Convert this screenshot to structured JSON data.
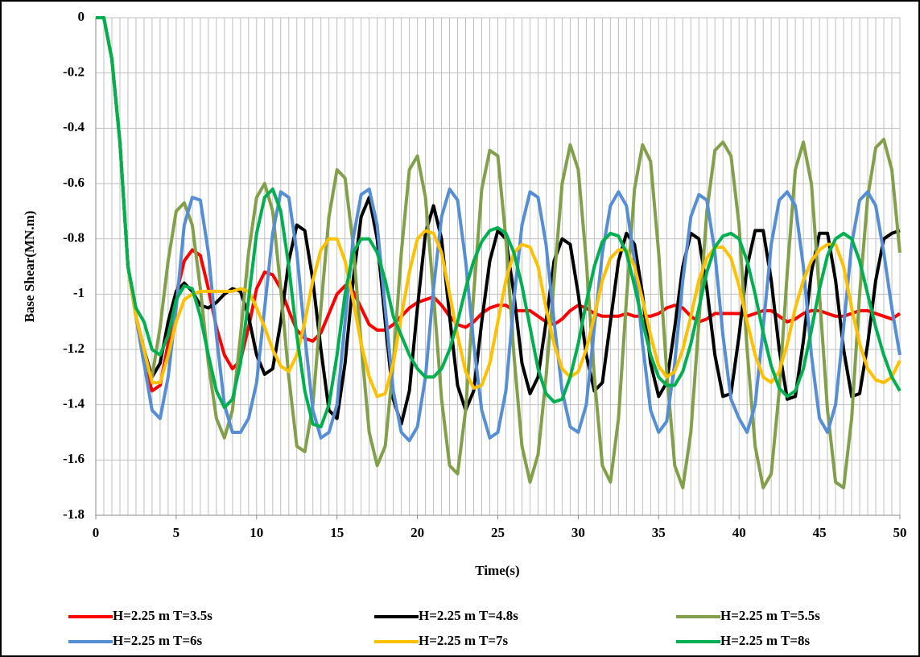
{
  "chart_data": {
    "type": "line",
    "x_label": "Time(s)",
    "y_label": "Base Shear(MN.m)",
    "x": [
      0,
      0.5,
      1,
      1.5,
      2,
      2.5,
      3,
      3.5,
      4,
      4.5,
      5,
      5.5,
      6,
      6.5,
      7,
      7.5,
      8,
      8.5,
      9,
      9.5,
      10,
      10.5,
      11,
      11.5,
      12,
      12.5,
      13,
      13.5,
      14,
      14.5,
      15,
      15.5,
      16,
      16.5,
      17,
      17.5,
      18,
      18.5,
      19,
      19.5,
      20,
      20.5,
      21,
      21.5,
      22,
      22.5,
      23,
      23.5,
      24,
      24.5,
      25,
      25.5,
      26,
      26.5,
      27,
      27.5,
      28,
      28.5,
      29,
      29.5,
      30,
      30.5,
      31,
      31.5,
      32,
      32.5,
      33,
      33.5,
      34,
      34.5,
      35,
      35.5,
      36,
      36.5,
      37,
      37.5,
      38,
      38.5,
      39,
      39.5,
      40,
      40.5,
      41,
      41.5,
      42,
      42.5,
      43,
      43.5,
      44,
      44.5,
      45,
      45.5,
      46,
      46.5,
      47,
      47.5,
      48,
      48.5,
      49,
      49.5,
      50
    ],
    "series": [
      {
        "name": "H=2.25 m T=3.5s",
        "color": "#ff0000",
        "values": [
          0,
          0,
          -0.15,
          -0.45,
          -0.9,
          -1.08,
          -1.25,
          -1.35,
          -1.33,
          -1.18,
          -1.0,
          -0.88,
          -0.84,
          -0.86,
          -0.98,
          -1.12,
          -1.22,
          -1.27,
          -1.24,
          -1.12,
          -0.98,
          -0.92,
          -0.93,
          -0.98,
          -1.06,
          -1.13,
          -1.16,
          -1.17,
          -1.14,
          -1.07,
          -1.0,
          -0.97,
          -0.99,
          -1.05,
          -1.11,
          -1.13,
          -1.13,
          -1.11,
          -1.08,
          -1.05,
          -1.03,
          -1.02,
          -1.01,
          -1.04,
          -1.08,
          -1.11,
          -1.12,
          -1.1,
          -1.07,
          -1.05,
          -1.04,
          -1.04,
          -1.06,
          -1.06,
          -1.06,
          -1.08,
          -1.1,
          -1.11,
          -1.09,
          -1.06,
          -1.04,
          -1.05,
          -1.07,
          -1.08,
          -1.08,
          -1.08,
          -1.07,
          -1.08,
          -1.08,
          -1.08,
          -1.07,
          -1.05,
          -1.04,
          -1.05,
          -1.08,
          -1.1,
          -1.09,
          -1.07,
          -1.07,
          -1.07,
          -1.07,
          -1.08,
          -1.07,
          -1.06,
          -1.06,
          -1.08,
          -1.1,
          -1.09,
          -1.07,
          -1.06,
          -1.06,
          -1.07,
          -1.08,
          -1.08,
          -1.07,
          -1.06,
          -1.06,
          -1.07,
          -1.08,
          -1.09,
          -1.07
        ]
      },
      {
        "name": "H=2.25 m T=4.8s",
        "color": "#000000",
        "values": [
          0,
          0,
          -0.15,
          -0.45,
          -0.9,
          -1.08,
          -1.2,
          -1.3,
          -1.25,
          -1.1,
          -0.99,
          -0.96,
          -0.99,
          -1.04,
          -1.05,
          -1.03,
          -1.0,
          -0.98,
          -0.99,
          -1.08,
          -1.22,
          -1.29,
          -1.27,
          -1.1,
          -0.88,
          -0.75,
          -0.77,
          -0.95,
          -1.2,
          -1.42,
          -1.45,
          -1.25,
          -0.95,
          -0.72,
          -0.65,
          -0.8,
          -1.1,
          -1.38,
          -1.47,
          -1.35,
          -1.05,
          -0.78,
          -0.68,
          -0.8,
          -1.08,
          -1.33,
          -1.42,
          -1.35,
          -1.1,
          -0.88,
          -0.77,
          -0.8,
          -1.0,
          -1.25,
          -1.36,
          -1.3,
          -1.1,
          -0.88,
          -0.8,
          -0.82,
          -1.0,
          -1.22,
          -1.35,
          -1.32,
          -1.1,
          -0.88,
          -0.78,
          -0.82,
          -1.0,
          -1.25,
          -1.37,
          -1.32,
          -1.12,
          -0.9,
          -0.78,
          -0.8,
          -0.98,
          -1.22,
          -1.37,
          -1.36,
          -1.15,
          -0.9,
          -0.77,
          -0.77,
          -0.95,
          -1.2,
          -1.38,
          -1.37,
          -1.17,
          -0.92,
          -0.78,
          -0.78,
          -0.95,
          -1.2,
          -1.37,
          -1.36,
          -1.18,
          -0.95,
          -0.8,
          -0.78,
          -0.77
        ]
      },
      {
        "name": "H=2.25 m T=5.5s",
        "color": "#82a04a",
        "values": [
          0,
          0,
          -0.15,
          -0.45,
          -0.9,
          -1.08,
          -1.25,
          -1.3,
          -1.12,
          -0.88,
          -0.7,
          -0.67,
          -0.75,
          -0.98,
          -1.25,
          -1.45,
          -1.52,
          -1.42,
          -1.15,
          -0.85,
          -0.65,
          -0.6,
          -0.7,
          -0.98,
          -1.3,
          -1.55,
          -1.57,
          -1.4,
          -1.05,
          -0.72,
          -0.55,
          -0.58,
          -0.82,
          -1.18,
          -1.5,
          -1.62,
          -1.55,
          -1.25,
          -0.85,
          -0.55,
          -0.5,
          -0.65,
          -1.0,
          -1.38,
          -1.62,
          -1.65,
          -1.42,
          -1.0,
          -0.62,
          -0.48,
          -0.5,
          -0.8,
          -1.22,
          -1.55,
          -1.68,
          -1.58,
          -1.3,
          -0.95,
          -0.6,
          -0.46,
          -0.55,
          -0.88,
          -1.3,
          -1.62,
          -1.68,
          -1.45,
          -1.02,
          -0.62,
          -0.46,
          -0.52,
          -0.85,
          -1.28,
          -1.62,
          -1.7,
          -1.5,
          -1.1,
          -0.7,
          -0.48,
          -0.45,
          -0.5,
          -0.75,
          -1.2,
          -1.55,
          -1.7,
          -1.65,
          -1.35,
          -0.92,
          -0.55,
          -0.45,
          -0.6,
          -1.0,
          -1.42,
          -1.68,
          -1.7,
          -1.45,
          -1.0,
          -0.65,
          -0.47,
          -0.44,
          -0.55,
          -0.85
        ]
      },
      {
        "name": "H=2.25 m T=6s",
        "color": "#558ed5",
        "values": [
          0,
          0,
          -0.15,
          -0.45,
          -0.9,
          -1.08,
          -1.25,
          -1.42,
          -1.45,
          -1.3,
          -1.05,
          -0.75,
          -0.65,
          -0.66,
          -0.85,
          -1.15,
          -1.4,
          -1.5,
          -1.5,
          -1.45,
          -1.32,
          -1.05,
          -0.78,
          -0.63,
          -0.65,
          -0.85,
          -1.15,
          -1.42,
          -1.52,
          -1.5,
          -1.4,
          -1.1,
          -0.8,
          -0.64,
          -0.62,
          -0.75,
          -1.05,
          -1.35,
          -1.5,
          -1.53,
          -1.48,
          -1.3,
          -0.98,
          -0.72,
          -0.62,
          -0.66,
          -0.88,
          -1.18,
          -1.42,
          -1.52,
          -1.5,
          -1.35,
          -1.02,
          -0.75,
          -0.63,
          -0.65,
          -0.82,
          -1.1,
          -1.35,
          -1.48,
          -1.5,
          -1.4,
          -1.12,
          -0.85,
          -0.68,
          -0.63,
          -0.68,
          -0.88,
          -1.18,
          -1.42,
          -1.5,
          -1.46,
          -1.25,
          -0.95,
          -0.72,
          -0.64,
          -0.66,
          -0.85,
          -1.15,
          -1.38,
          -1.45,
          -1.5,
          -1.4,
          -1.12,
          -0.82,
          -0.66,
          -0.63,
          -0.68,
          -0.9,
          -1.22,
          -1.45,
          -1.5,
          -1.4,
          -1.12,
          -0.82,
          -0.66,
          -0.63,
          -0.68,
          -0.85,
          -1.05,
          -1.22
        ]
      },
      {
        "name": "H=2.25 m T=7s",
        "color": "#ffc000",
        "values": [
          0,
          0,
          -0.15,
          -0.45,
          -0.9,
          -1.08,
          -1.2,
          -1.32,
          -1.32,
          -1.22,
          -1.1,
          -1.02,
          -1.0,
          -0.99,
          -0.99,
          -0.99,
          -0.99,
          -0.99,
          -0.98,
          -0.99,
          -1.05,
          -1.12,
          -1.2,
          -1.26,
          -1.28,
          -1.22,
          -1.1,
          -0.95,
          -0.84,
          -0.8,
          -0.8,
          -0.88,
          -1.02,
          -1.18,
          -1.3,
          -1.37,
          -1.36,
          -1.25,
          -1.08,
          -0.92,
          -0.8,
          -0.77,
          -0.78,
          -0.85,
          -1.0,
          -1.15,
          -1.28,
          -1.34,
          -1.33,
          -1.25,
          -1.1,
          -0.95,
          -0.85,
          -0.82,
          -0.83,
          -0.9,
          -1.05,
          -1.18,
          -1.27,
          -1.3,
          -1.28,
          -1.2,
          -1.08,
          -0.95,
          -0.87,
          -0.84,
          -0.84,
          -0.9,
          -1.02,
          -1.15,
          -1.26,
          -1.3,
          -1.28,
          -1.2,
          -1.08,
          -0.95,
          -0.87,
          -0.83,
          -0.83,
          -0.87,
          -0.97,
          -1.1,
          -1.22,
          -1.3,
          -1.32,
          -1.28,
          -1.18,
          -1.05,
          -0.95,
          -0.88,
          -0.84,
          -0.82,
          -0.82,
          -0.9,
          -1.05,
          -1.18,
          -1.27,
          -1.31,
          -1.32,
          -1.3,
          -1.24
        ]
      },
      {
        "name": "H=2.25 m T=8s",
        "color": "#00b050",
        "values": [
          0,
          0,
          -0.15,
          -0.45,
          -0.9,
          -1.05,
          -1.1,
          -1.2,
          -1.22,
          -1.15,
          -1.02,
          -0.97,
          -0.98,
          -1.08,
          -1.22,
          -1.35,
          -1.41,
          -1.38,
          -1.25,
          -1.02,
          -0.78,
          -0.65,
          -0.62,
          -0.7,
          -0.9,
          -1.15,
          -1.35,
          -1.47,
          -1.48,
          -1.4,
          -1.22,
          -1.0,
          -0.85,
          -0.8,
          -0.8,
          -0.85,
          -0.95,
          -1.08,
          -1.15,
          -1.22,
          -1.27,
          -1.3,
          -1.3,
          -1.27,
          -1.2,
          -1.1,
          -0.98,
          -0.88,
          -0.81,
          -0.77,
          -0.76,
          -0.78,
          -0.85,
          -0.97,
          -1.12,
          -1.27,
          -1.36,
          -1.39,
          -1.38,
          -1.3,
          -1.18,
          -1.03,
          -0.9,
          -0.81,
          -0.78,
          -0.79,
          -0.85,
          -0.97,
          -1.1,
          -1.22,
          -1.3,
          -1.33,
          -1.33,
          -1.28,
          -1.18,
          -1.05,
          -0.92,
          -0.83,
          -0.79,
          -0.78,
          -0.8,
          -0.88,
          -1.0,
          -1.14,
          -1.26,
          -1.34,
          -1.37,
          -1.35,
          -1.27,
          -1.13,
          -0.98,
          -0.86,
          -0.8,
          -0.78,
          -0.8,
          -0.88,
          -1.0,
          -1.12,
          -1.22,
          -1.3,
          -1.35
        ]
      }
    ],
    "xlim": [
      0,
      50
    ],
    "xticks": [
      0,
      5,
      10,
      15,
      20,
      25,
      30,
      35,
      40,
      45,
      50
    ],
    "ylim": [
      -1.8,
      0
    ],
    "yticks": [
      0,
      -0.2,
      -0.4,
      -0.6,
      -0.8,
      -1,
      -1.2,
      -1.4,
      -1.6,
      -1.8
    ],
    "grid": true,
    "legend": "bottom"
  }
}
